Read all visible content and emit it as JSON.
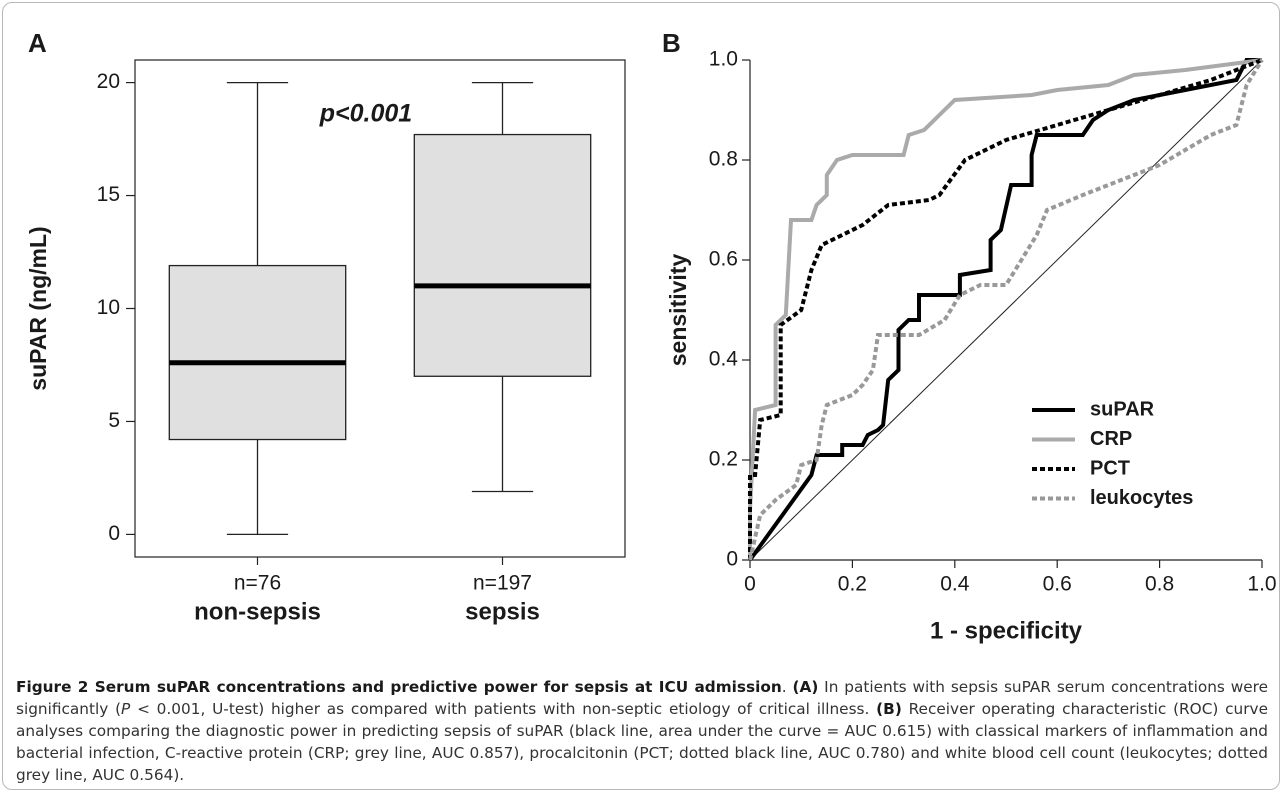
{
  "chart_data": [
    {
      "type": "box",
      "panel_label": "A",
      "y_label": "suPAR (ng/mL)",
      "annotation": "p<0.001",
      "categories": [
        "non-sepsis",
        "sepsis"
      ],
      "sample_sizes": [
        "n=76",
        "n=197"
      ],
      "boxes": [
        {
          "whislo": 0,
          "q1": 4.2,
          "med": 7.6,
          "q3": 11.9,
          "whishi": 20
        },
        {
          "whislo": 1.9,
          "q1": 7.0,
          "med": 11.0,
          "q3": 17.7,
          "whishi": 20
        }
      ],
      "color": "#e0e0e0",
      "ylim": [
        -1,
        21
      ],
      "yticks": [
        0,
        5,
        10,
        15,
        20
      ]
    },
    {
      "type": "line",
      "panel_label": "B",
      "x_label": "1 - specificity",
      "y_label": "sensitivity",
      "xlim": [
        0,
        1
      ],
      "ylim": [
        0,
        1
      ],
      "diagonal": true,
      "legend": "lower right",
      "xticks": [
        0,
        0.2,
        0.4,
        0.6,
        0.8,
        {
          "value": 1,
          "label": "1.0"
        }
      ],
      "yticks": [
        0,
        0.2,
        0.4,
        0.6,
        0.8,
        {
          "value": 1,
          "label": "1.0"
        }
      ],
      "series": [
        {
          "name": "suPAR",
          "color": "#000000",
          "dotted": false,
          "x": [
            0,
            0.12,
            0.13,
            0.18,
            0.18,
            0.22,
            0.23,
            0.25,
            0.26,
            0.27,
            0.29,
            0.29,
            0.31,
            0.33,
            0.33,
            0.41,
            0.41,
            0.47,
            0.47,
            0.49,
            0.51,
            0.55,
            0.55,
            0.56,
            0.65,
            0.67,
            0.7,
            0.75,
            0.8,
            0.85,
            0.95,
            0.97,
            1
          ],
          "values": [
            0,
            0.17,
            0.21,
            0.21,
            0.23,
            0.23,
            0.25,
            0.26,
            0.27,
            0.36,
            0.38,
            0.46,
            0.48,
            0.48,
            0.53,
            0.53,
            0.57,
            0.58,
            0.64,
            0.66,
            0.75,
            0.75,
            0.81,
            0.85,
            0.85,
            0.88,
            0.9,
            0.92,
            0.93,
            0.94,
            0.96,
            1,
            1
          ]
        },
        {
          "name": "CRP",
          "color": "#aaaaaa",
          "dotted": false,
          "x": [
            0,
            0,
            0.01,
            0.05,
            0.05,
            0.07,
            0.08,
            0.12,
            0.13,
            0.15,
            0.15,
            0.17,
            0.2,
            0.3,
            0.31,
            0.34,
            0.37,
            0.4,
            0.55,
            0.6,
            0.7,
            0.75,
            0.85,
            1
          ],
          "values": [
            0,
            0.1,
            0.3,
            0.31,
            0.47,
            0.49,
            0.68,
            0.68,
            0.71,
            0.73,
            0.77,
            0.8,
            0.81,
            0.81,
            0.85,
            0.86,
            0.89,
            0.92,
            0.93,
            0.94,
            0.95,
            0.97,
            0.98,
            1
          ]
        },
        {
          "name": "PCT",
          "color": "#000000",
          "dotted": true,
          "x": [
            0,
            0,
            0.01,
            0.02,
            0.06,
            0.06,
            0.1,
            0.12,
            0.14,
            0.18,
            0.22,
            0.27,
            0.35,
            0.37,
            0.42,
            0.5,
            0.6,
            0.7,
            0.8,
            0.9,
            1
          ],
          "values": [
            0,
            0.17,
            0.17,
            0.28,
            0.29,
            0.47,
            0.5,
            0.58,
            0.63,
            0.65,
            0.67,
            0.71,
            0.72,
            0.73,
            0.8,
            0.84,
            0.87,
            0.9,
            0.93,
            0.96,
            1
          ]
        },
        {
          "name": "leukocytes",
          "color": "#999999",
          "dotted": true,
          "x": [
            0,
            0.02,
            0.05,
            0.09,
            0.1,
            0.13,
            0.14,
            0.15,
            0.2,
            0.22,
            0.24,
            0.25,
            0.33,
            0.38,
            0.41,
            0.45,
            0.5,
            0.53,
            0.56,
            0.58,
            0.65,
            0.7,
            0.75,
            0.8,
            0.85,
            0.9,
            0.95,
            0.97,
            1
          ],
          "values": [
            0,
            0.09,
            0.12,
            0.15,
            0.19,
            0.2,
            0.27,
            0.31,
            0.33,
            0.35,
            0.38,
            0.45,
            0.45,
            0.48,
            0.53,
            0.55,
            0.55,
            0.6,
            0.65,
            0.7,
            0.73,
            0.75,
            0.77,
            0.79,
            0.82,
            0.85,
            0.87,
            0.95,
            1
          ]
        }
      ]
    }
  ],
  "caption": {
    "segments": [
      {
        "text": "Figure 2 Serum suPAR concentrations and predictive power for sepsis at ICU admission",
        "style": "bold"
      },
      {
        "text": ". ",
        "style": "normal"
      },
      {
        "text": "(A)",
        "style": "bold"
      },
      {
        "text": " In patients with sepsis suPAR serum concentrations were significantly (",
        "style": "normal"
      },
      {
        "text": "P",
        "style": "italic"
      },
      {
        "text": " < 0.001, U-test) higher as compared with patients with non-septic etiology of critical illness. ",
        "style": "normal"
      },
      {
        "text": "(B)",
        "style": "bold"
      },
      {
        "text": " Receiver operating characteristic (ROC) curve analyses comparing the diagnostic power in predicting sepsis of suPAR (black line, area under the curve = AUC 0.615) with classical markers of inflammation and bacterial infection, C-reactive protein (CRP; grey line, AUC 0.857), procalcitonin (PCT; dotted black line, AUC 0.780) and white blood cell count (leukocytes; dotted grey line, AUC 0.564).",
        "style": "normal"
      }
    ]
  }
}
